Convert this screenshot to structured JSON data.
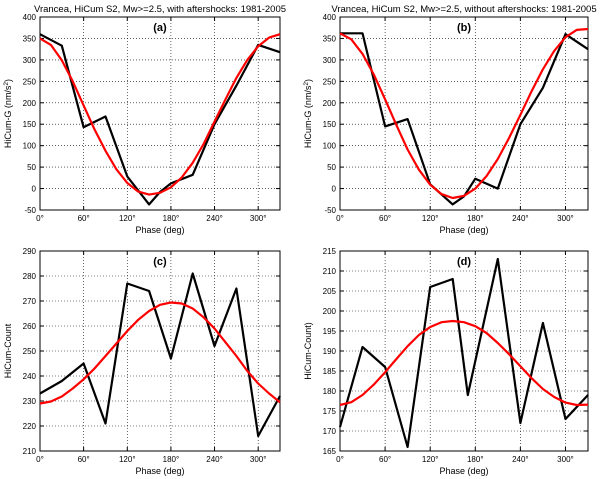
{
  "chart_data": [
    {
      "type": "line",
      "title": "Vrancea, HiCum S2, Mw>=2.5, with aftershocks: 1981-2005",
      "panel_label": "(a)",
      "xlabel": "Phase (deg)",
      "ylabel": "HiCum-G (nm/s",
      "ylabel_sup": "2",
      "ylabel_tail": ")",
      "xlim": [
        0,
        330
      ],
      "ylim": [
        -50,
        400
      ],
      "x_ticks": [
        0,
        60,
        120,
        180,
        240,
        300
      ],
      "x_tick_labels": [
        "0°",
        "60°",
        "120°",
        "180°",
        "240°",
        "300°"
      ],
      "y_ticks": [
        -50,
        0,
        50,
        100,
        150,
        200,
        250,
        300,
        350,
        400
      ],
      "y_tick_labels": [
        "-50",
        "0",
        "50",
        "100",
        "150",
        "200",
        "250",
        "300",
        "350",
        "400"
      ],
      "grid": true,
      "series": [
        {
          "color": "#000000",
          "x": [
            0,
            30,
            60,
            90,
            120,
            150,
            165,
            180,
            210,
            240,
            270,
            300,
            330
          ],
          "y": [
            360,
            333,
            143,
            168,
            28,
            -37,
            -8,
            12,
            32,
            150,
            240,
            335,
            318
          ]
        },
        {
          "color": "#ff0000",
          "x": [
            0,
            15,
            30,
            45,
            60,
            75,
            90,
            105,
            120,
            135,
            150,
            165,
            180,
            195,
            210,
            225,
            240,
            255,
            270,
            285,
            300,
            315,
            330
          ],
          "y": [
            350,
            335,
            299,
            250,
            194,
            138,
            88,
            45,
            13,
            -7,
            -14,
            -10,
            3,
            26,
            60,
            104,
            156,
            208,
            258,
            300,
            332,
            352,
            360
          ]
        }
      ]
    },
    {
      "type": "line",
      "title": "Vrancea, HiCum S2, Mw>=2.5, without aftershocks: 1981-2005",
      "panel_label": "(b)",
      "xlabel": "Phase (deg)",
      "ylabel": "HiCum-G (nm/s",
      "ylabel_sup": "2",
      "ylabel_tail": ")",
      "xlim": [
        0,
        330
      ],
      "ylim": [
        -50,
        400
      ],
      "x_ticks": [
        0,
        60,
        120,
        180,
        240,
        300
      ],
      "x_tick_labels": [
        "0°",
        "60°",
        "120°",
        "180°",
        "240°",
        "300°"
      ],
      "y_ticks": [
        -50,
        0,
        50,
        100,
        150,
        200,
        250,
        300,
        350,
        400
      ],
      "y_tick_labels": [
        "-50",
        "0",
        "50",
        "100",
        "150",
        "200",
        "250",
        "300",
        "350",
        "400"
      ],
      "grid": true,
      "series": [
        {
          "color": "#000000",
          "x": [
            0,
            30,
            60,
            90,
            120,
            150,
            165,
            180,
            210,
            240,
            270,
            300,
            330
          ],
          "y": [
            362,
            362,
            145,
            162,
            10,
            -37,
            -18,
            23,
            0,
            150,
            235,
            360,
            325
          ]
        },
        {
          "color": "#ff0000",
          "x": [
            0,
            15,
            30,
            45,
            60,
            75,
            90,
            105,
            120,
            135,
            150,
            165,
            180,
            195,
            210,
            225,
            240,
            255,
            270,
            285,
            300,
            315,
            330
          ],
          "y": [
            362,
            348,
            314,
            266,
            208,
            148,
            91,
            44,
            9,
            -13,
            -22,
            -17,
            0,
            29,
            69,
            118,
            172,
            227,
            278,
            321,
            353,
            370,
            372
          ]
        }
      ]
    },
    {
      "type": "line",
      "title": "",
      "panel_label": "(c)",
      "xlabel": "Phase (deg)",
      "ylabel": "HiCum-Count",
      "ylabel_sup": "",
      "ylabel_tail": "",
      "xlim": [
        0,
        330
      ],
      "ylim": [
        210,
        290
      ],
      "x_ticks": [
        0,
        60,
        120,
        180,
        240,
        300
      ],
      "x_tick_labels": [
        "0°",
        "60°",
        "120°",
        "180°",
        "240°",
        "300°"
      ],
      "y_ticks": [
        210,
        220,
        230,
        240,
        250,
        260,
        270,
        280,
        290
      ],
      "y_tick_labels": [
        "210",
        "220",
        "230",
        "240",
        "250",
        "260",
        "270",
        "280",
        "290"
      ],
      "grid": true,
      "series": [
        {
          "color": "#000000",
          "x": [
            0,
            30,
            60,
            90,
            120,
            150,
            180,
            210,
            240,
            270,
            300,
            330
          ],
          "y": [
            233,
            238,
            245,
            221,
            277,
            274,
            247,
            281,
            252,
            275,
            216,
            232
          ]
        },
        {
          "color": "#ff0000",
          "x": [
            0,
            15,
            30,
            45,
            60,
            75,
            90,
            105,
            120,
            135,
            150,
            165,
            180,
            195,
            210,
            225,
            240,
            255,
            270,
            285,
            300,
            315,
            330
          ],
          "y": [
            229,
            229.8,
            231.8,
            235,
            238.7,
            243,
            248,
            253,
            258,
            262.5,
            266,
            268.5,
            269.4,
            269,
            267,
            263.5,
            259,
            253.5,
            248,
            242,
            237,
            233,
            229.5
          ]
        }
      ]
    },
    {
      "type": "line",
      "title": "",
      "panel_label": "(d)",
      "xlabel": "Phase (deg)",
      "ylabel": "HiCum-Count)",
      "ylabel_sup": "",
      "ylabel_tail": "",
      "xlim": [
        0,
        330
      ],
      "ylim": [
        165,
        215
      ],
      "x_ticks": [
        0,
        60,
        120,
        180,
        240,
        300
      ],
      "x_tick_labels": [
        "0°",
        "60°",
        "120°",
        "180°",
        "240°",
        "300°"
      ],
      "y_ticks": [
        165,
        170,
        175,
        180,
        185,
        190,
        195,
        200,
        205,
        210,
        215
      ],
      "y_tick_labels": [
        "165",
        "170",
        "175",
        "180",
        "185",
        "190",
        "195",
        "200",
        "205",
        "210",
        "215"
      ],
      "grid": true,
      "series": [
        {
          "color": "#000000",
          "x": [
            0,
            30,
            60,
            90,
            120,
            150,
            170,
            210,
            240,
            270,
            300,
            330
          ],
          "y": [
            171,
            191,
            186,
            166,
            206,
            208,
            179,
            213,
            172,
            197,
            173,
            179
          ]
        },
        {
          "color": "#ff0000",
          "x": [
            0,
            15,
            30,
            45,
            60,
            75,
            90,
            105,
            120,
            135,
            150,
            165,
            180,
            195,
            210,
            225,
            240,
            255,
            270,
            285,
            300,
            315,
            330
          ],
          "y": [
            176.5,
            177.2,
            179,
            181.6,
            184.7,
            188,
            191.2,
            194,
            196,
            197.2,
            197.5,
            197.2,
            196.2,
            194.5,
            192,
            189.2,
            186.2,
            183.2,
            180.5,
            178.5,
            177.1,
            176.5,
            176.6
          ]
        }
      ]
    }
  ]
}
